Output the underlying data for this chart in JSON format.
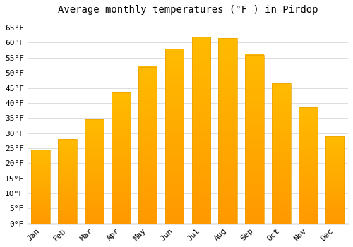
{
  "title": "Average monthly temperatures (°F ) in Pirdop",
  "months": [
    "Jan",
    "Feb",
    "Mar",
    "Apr",
    "May",
    "Jun",
    "Jul",
    "Aug",
    "Sep",
    "Oct",
    "Nov",
    "Dec"
  ],
  "values": [
    24.5,
    28.0,
    34.5,
    43.5,
    52.0,
    58.0,
    62.0,
    61.5,
    56.0,
    46.5,
    38.5,
    29.0
  ],
  "bar_color_top": "#FFBB00",
  "bar_color_bottom": "#FF9900",
  "bar_edge_color": "#E8A000",
  "background_color": "#FFFFFF",
  "grid_color": "#DDDDDD",
  "ylim": [
    0,
    68
  ],
  "yticks": [
    0,
    5,
    10,
    15,
    20,
    25,
    30,
    35,
    40,
    45,
    50,
    55,
    60,
    65
  ],
  "title_fontsize": 10,
  "tick_fontsize": 8,
  "font_family": "monospace"
}
